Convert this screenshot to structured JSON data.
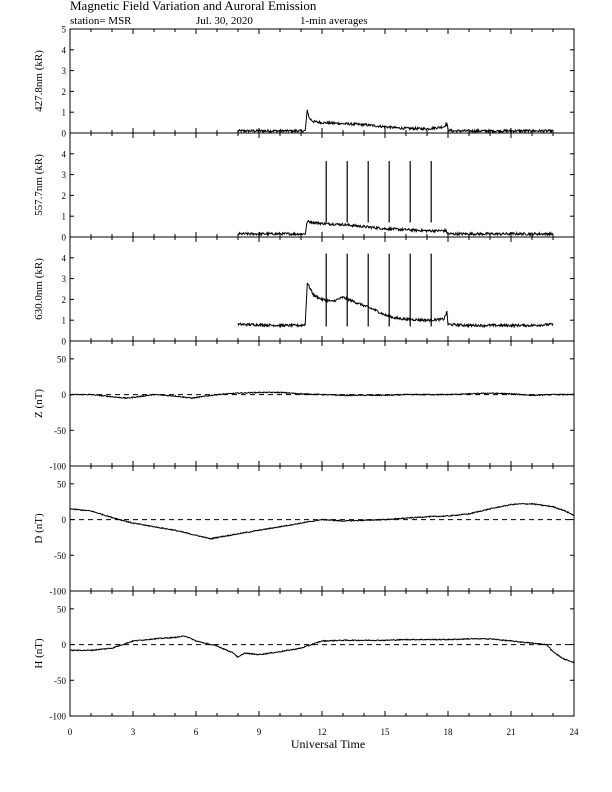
{
  "header": {
    "title": "Magnetic Field Variation and Auroral Emission",
    "station": "station= MSR",
    "date": "Jul. 30, 2020",
    "averaging": "1-min averages"
  },
  "chart_data": [
    {
      "type": "line",
      "ylabel": "427.8nm (kR)",
      "ylim": [
        0,
        5
      ],
      "yticks": [
        0,
        1,
        2,
        3,
        4,
        5
      ],
      "xlim": [
        0,
        24
      ],
      "series": [
        {
          "x": [
            8.0,
            9.0,
            10.0,
            11.0,
            11.2,
            11.3,
            11.4,
            11.6,
            12.0,
            13.0,
            14.0,
            15.0,
            15.5,
            16.0,
            17.0,
            17.8,
            17.95,
            18.0,
            18.2,
            19.0,
            20.0,
            21.0,
            22.0,
            23.0
          ],
          "y": [
            0.1,
            0.1,
            0.1,
            0.1,
            0.1,
            1.1,
            0.7,
            0.55,
            0.5,
            0.45,
            0.4,
            0.3,
            0.25,
            0.22,
            0.2,
            0.3,
            0.45,
            0.15,
            0.1,
            0.1,
            0.1,
            0.1,
            0.1,
            0.1
          ]
        }
      ]
    },
    {
      "type": "line",
      "ylabel": "557.7nm (kR)",
      "ylim": [
        0,
        5
      ],
      "yticks": [
        0,
        1,
        2,
        3,
        4
      ],
      "xlim": [
        0,
        24
      ],
      "series": [
        {
          "x": [
            8.0,
            9.0,
            10.0,
            11.0,
            11.2,
            11.3,
            12.0,
            13.0,
            14.0,
            15.0,
            16.0,
            17.0,
            17.9,
            18.0,
            19.0,
            20.0,
            21.0,
            22.0,
            23.0
          ],
          "y": [
            0.15,
            0.15,
            0.15,
            0.15,
            0.15,
            0.75,
            0.65,
            0.6,
            0.5,
            0.4,
            0.35,
            0.3,
            0.3,
            0.15,
            0.15,
            0.15,
            0.15,
            0.15,
            0.15
          ]
        }
      ],
      "spikes": [
        12.2,
        13.2,
        14.2,
        15.2,
        16.2,
        17.2
      ],
      "spike_top": 3.65
    },
    {
      "type": "line",
      "ylabel": "630.0nm (kR)",
      "ylim": [
        0,
        5
      ],
      "yticks": [
        0,
        1,
        2,
        3,
        4
      ],
      "xlim": [
        0,
        24
      ],
      "series": [
        {
          "x": [
            8.0,
            9.0,
            10.0,
            11.0,
            11.2,
            11.3,
            11.6,
            12.0,
            12.5,
            13.0,
            13.5,
            14.0,
            14.5,
            15.0,
            15.5,
            16.0,
            17.0,
            17.8,
            17.95,
            18.0,
            19.0,
            20.0,
            21.0,
            22.0,
            23.0
          ],
          "y": [
            0.8,
            0.78,
            0.75,
            0.75,
            0.8,
            2.8,
            2.2,
            2.0,
            1.9,
            2.1,
            1.9,
            1.7,
            1.5,
            1.25,
            1.1,
            1.05,
            1.0,
            1.05,
            1.4,
            0.8,
            0.75,
            0.75,
            0.75,
            0.75,
            0.8
          ]
        }
      ],
      "spikes": [
        12.2,
        13.2,
        14.2,
        15.2,
        16.2,
        17.2
      ],
      "spike_top": 4.2
    },
    {
      "type": "line",
      "ylabel": "Z (nT)",
      "ylim": [
        -100,
        75
      ],
      "yticks": [
        -100,
        -50,
        0,
        50
      ],
      "baseline": 0,
      "xlim": [
        0,
        24
      ],
      "series": [
        {
          "x": [
            0,
            1,
            2,
            2.7,
            3.5,
            4,
            5,
            5.8,
            6.5,
            7,
            8,
            9,
            10,
            11,
            12,
            13,
            14,
            15,
            16,
            17,
            18,
            19,
            20,
            21,
            22,
            23,
            24
          ],
          "y": [
            0,
            0,
            -3,
            -5,
            -2,
            0,
            -2,
            -5,
            -2,
            0,
            2,
            3,
            3,
            1,
            0,
            -1,
            -1,
            -1,
            0,
            0,
            0,
            1,
            2,
            1,
            -1,
            0,
            0
          ]
        }
      ]
    },
    {
      "type": "line",
      "ylabel": "D (nT)",
      "ylim": [
        -100,
        75
      ],
      "yticks": [
        -100,
        -50,
        0,
        50
      ],
      "baseline": 0,
      "xlim": [
        0,
        24
      ],
      "series": [
        {
          "x": [
            0,
            1,
            2,
            3,
            4,
            5,
            6,
            6.7,
            7,
            8,
            9,
            10,
            11,
            12,
            13,
            14,
            15,
            16,
            17,
            18,
            19,
            20,
            21,
            21.5,
            22,
            23,
            23.5,
            24
          ],
          "y": [
            15,
            12,
            3,
            -5,
            -10,
            -15,
            -22,
            -27,
            -25,
            -20,
            -15,
            -10,
            -5,
            0,
            -2,
            -1,
            0,
            2,
            4,
            5,
            8,
            15,
            21,
            22,
            22,
            18,
            13,
            6
          ]
        }
      ]
    },
    {
      "type": "line",
      "ylabel": "H (nT)",
      "ylim": [
        -100,
        75
      ],
      "yticks": [
        -100,
        -50,
        0,
        50
      ],
      "baseline": 0,
      "xlim": [
        0,
        24
      ],
      "series": [
        {
          "x": [
            0,
            1,
            2,
            3,
            4,
            5,
            5.5,
            6,
            7,
            7.8,
            8.0,
            8.3,
            9,
            10,
            11,
            12,
            13,
            14,
            15,
            16,
            17,
            18,
            19,
            20,
            21,
            22,
            22.7,
            23,
            23.5,
            24
          ],
          "y": [
            -8,
            -8,
            -5,
            5,
            8,
            10,
            12,
            5,
            -2,
            -12,
            -18,
            -12,
            -14,
            -10,
            -5,
            5,
            6,
            6,
            6,
            7,
            7,
            7,
            8,
            8,
            5,
            2,
            0,
            -10,
            -20,
            -25
          ]
        }
      ]
    }
  ],
  "xaxis": {
    "label": "Universal Time",
    "ticks": [
      0,
      3,
      6,
      9,
      12,
      15,
      18,
      21,
      24
    ]
  }
}
